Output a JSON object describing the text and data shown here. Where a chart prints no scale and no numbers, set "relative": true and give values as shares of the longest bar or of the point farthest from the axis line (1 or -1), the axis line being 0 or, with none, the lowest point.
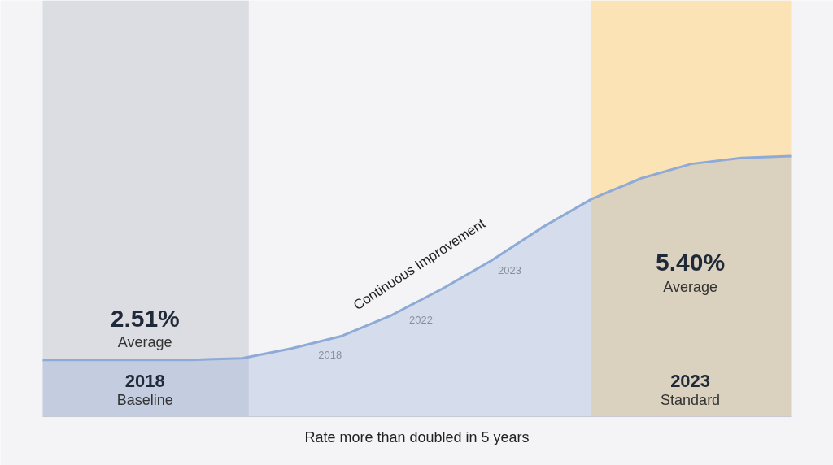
{
  "chart_data": {
    "type": "area",
    "relative": true,
    "categories": [
      null,
      null,
      null,
      null,
      null,
      null,
      null,
      null,
      null,
      null,
      null,
      null,
      null,
      null,
      null,
      null
    ],
    "series": [
      {
        "color": "#8eaad6",
        "values": [
          0.218,
          0.218,
          0.218,
          0.218,
          0.224,
          0.262,
          0.31,
          0.39,
          0.49,
          0.6,
          0.725,
          0.835,
          0.915,
          0.97,
          0.993,
          1.0
        ]
      }
    ],
    "annotations": [
      "2.51%",
      "Average",
      "2018",
      "Baseline",
      "5.40%",
      "Average",
      "2023",
      "Standard",
      "Continuous Improvement",
      "2018",
      "2022",
      "2023",
      "Rate more than doubled in 5 years"
    ]
  }
}
